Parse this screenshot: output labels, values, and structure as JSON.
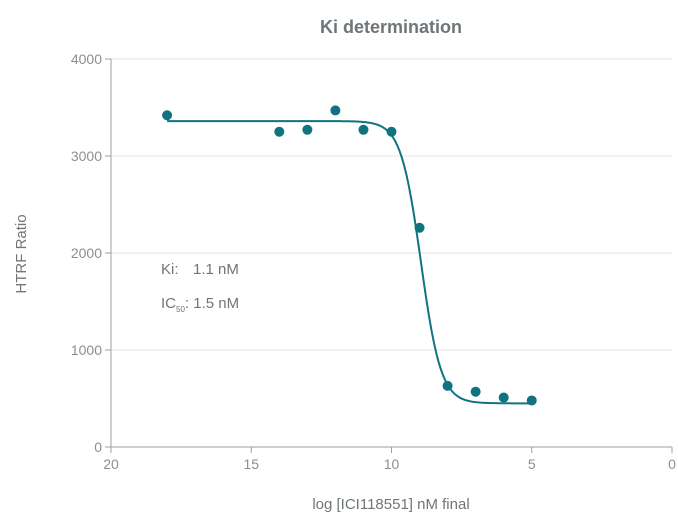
{
  "chart_data": {
    "type": "scatter",
    "title": "Ki determination",
    "xlabel": "log [ICI118551] nM final",
    "ylabel": "HTRF Ratio",
    "xlim": [
      20,
      0
    ],
    "ylim": [
      0,
      4000
    ],
    "x_reversed": true,
    "x_ticks": [
      20,
      15,
      10,
      5,
      0
    ],
    "y_ticks": [
      0,
      1000,
      2000,
      3000,
      4000
    ],
    "grid": "horizontal",
    "colors": {
      "series": "#11737f",
      "text": "#6f7579",
      "grid": "#e4e6e8"
    },
    "series": [
      {
        "points": [
          {
            "x": 18,
            "y": 3420
          },
          {
            "x": 14,
            "y": 3250
          },
          {
            "x": 13,
            "y": 3270
          },
          {
            "x": 12,
            "y": 3470
          },
          {
            "x": 11,
            "y": 3270
          },
          {
            "x": 10,
            "y": 3250
          },
          {
            "x": 9,
            "y": 2260
          },
          {
            "x": 8,
            "y": 630
          },
          {
            "x": 7,
            "y": 570
          },
          {
            "x": 6,
            "y": 510
          },
          {
            "x": 5,
            "y": 480
          }
        ]
      }
    ],
    "fit_curve": {
      "type": "sigmoid",
      "top": 3360,
      "bottom": 450,
      "midpoint_x": 8.95,
      "x_range": [
        18,
        5
      ]
    },
    "annotations": {
      "ki_label": "Ki:",
      "ki_value": "1.1 nM",
      "ic50_prefix": "IC",
      "ic50_sub": "50",
      "ic50_value": ": 1.5 nM"
    }
  }
}
